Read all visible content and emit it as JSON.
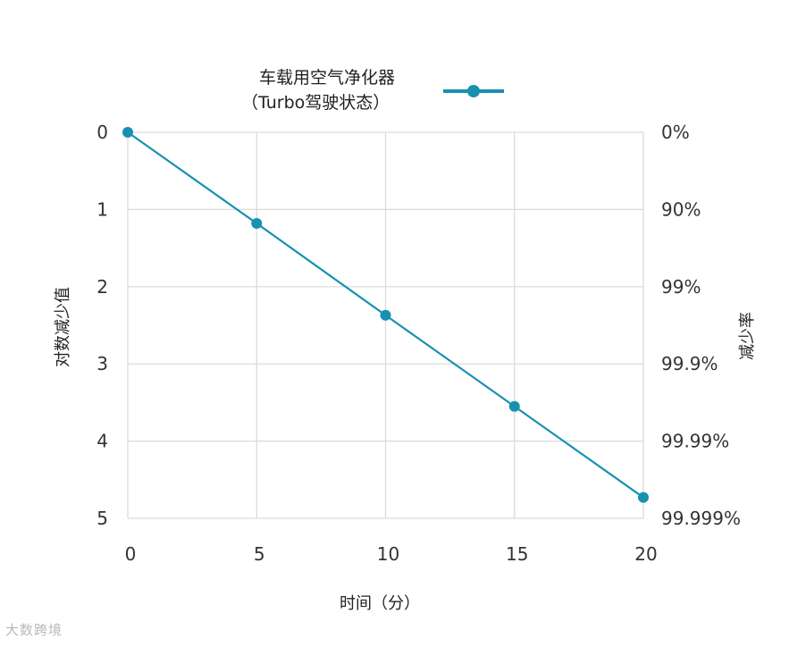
{
  "chart_data": {
    "type": "line",
    "title": "",
    "xlabel": "时间（分）",
    "ylabel": "对数减少值",
    "ylabel_right": "减少率",
    "x_ticks": [
      "0",
      "5",
      "10",
      "15",
      "20"
    ],
    "y_ticks": [
      "0",
      "1",
      "2",
      "3",
      "4",
      "5"
    ],
    "y_right_ticks": [
      "0%",
      "90%",
      "99%",
      "99.9%",
      "99.99%",
      "99.999%"
    ],
    "xlim": [
      0,
      20
    ],
    "ylim": [
      0,
      5
    ],
    "y_inverted": true,
    "grid": true,
    "legend_position": "top",
    "series": [
      {
        "name_line1": "车载用空气净化器",
        "name_line2": "（Turbo驾驶状态）",
        "color": "#1891b0",
        "x": [
          0,
          5,
          10,
          15,
          20
        ],
        "y": [
          0,
          1.18,
          2.37,
          3.55,
          4.73
        ]
      }
    ]
  },
  "watermark": "大数跨境"
}
